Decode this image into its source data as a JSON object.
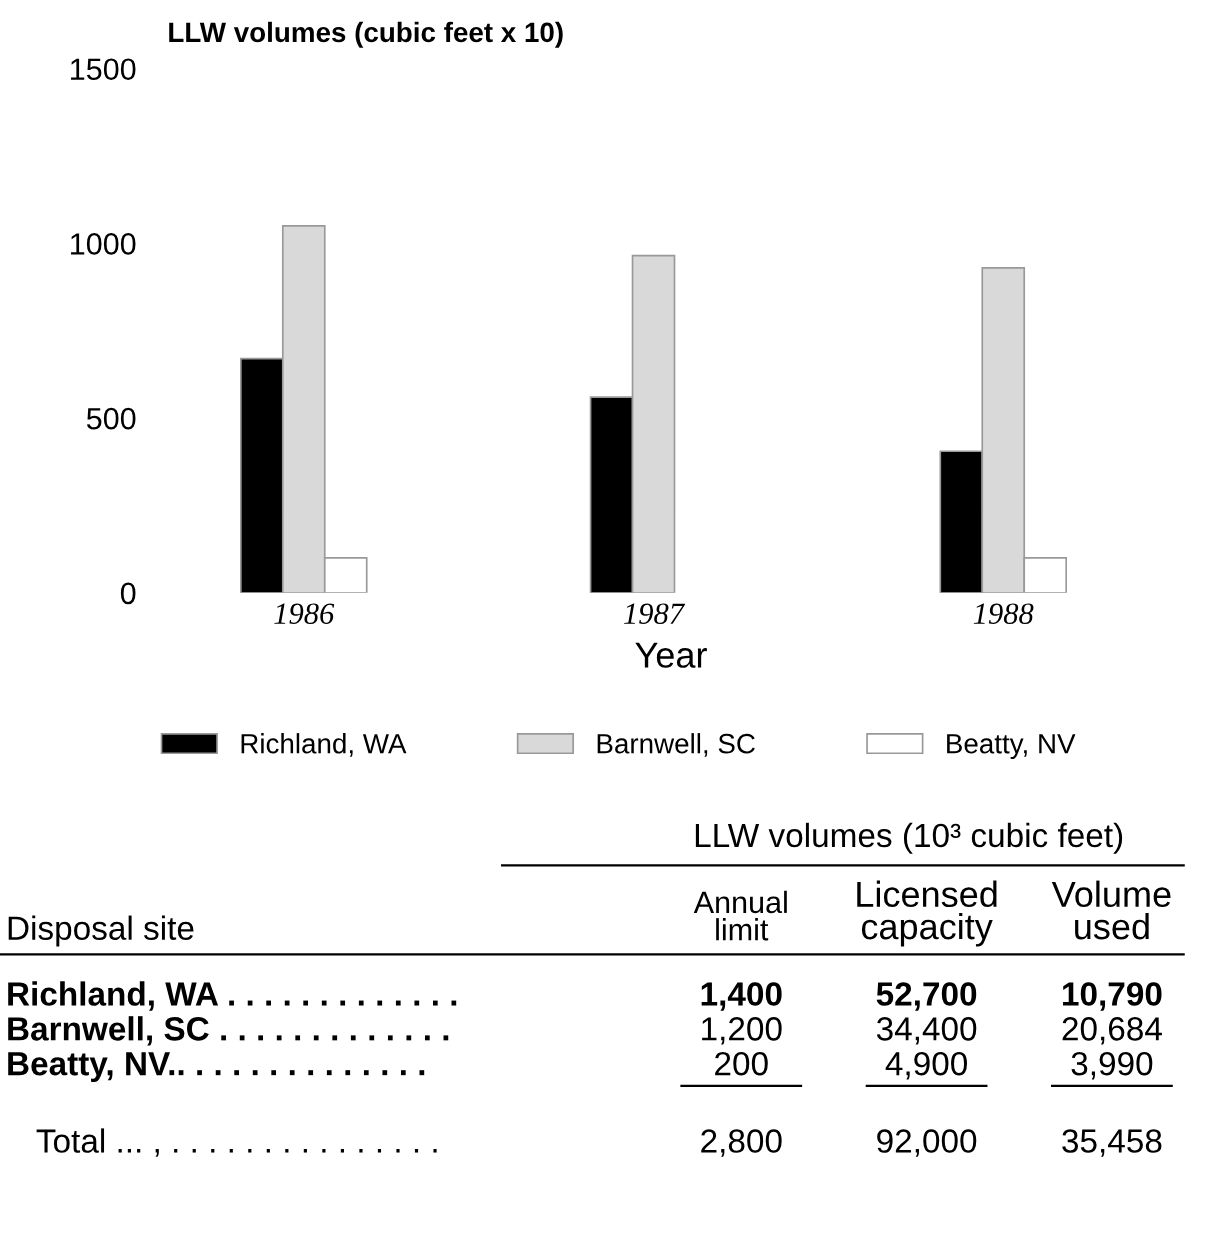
{
  "chart_data": [
    {
      "type": "bar",
      "title": "LLW volumes (cubic feet x 10)",
      "xlabel": "Year",
      "categories": [
        "1986",
        "1987",
        "1988"
      ],
      "series": [
        {
          "name": "Richland, WA",
          "color": "#000000",
          "values": [
            670,
            560,
            405
          ]
        },
        {
          "name": "Barnwell, SC",
          "color": "#d9d9d9",
          "values": [
            1050,
            965,
            930
          ]
        },
        {
          "name": "Beatty, NV",
          "color": "#ffffff",
          "values": [
            100,
            null,
            100
          ]
        }
      ],
      "ylim": [
        0,
        1500
      ],
      "yticks": [
        0,
        500,
        1000,
        1500
      ],
      "grid": false,
      "legend": "bottom"
    },
    {
      "type": "other",
      "annotations": [
        "LLW volumes (10³ cubic feet)",
        "Disposal site",
        "Annual limit",
        "Licensed capacity",
        "Volume used",
        "Richland, WA . . . . . . . . . . . . .",
        "1,400",
        "52,700",
        "10,790",
        "Barnwell, SC . . . . . . . . . . . . .",
        "1,200",
        "34,400",
        "20,684",
        "Beatty, NV.. . . . . . . . . . . . . .",
        "200",
        "4,900",
        "3,990",
        "Total ... , . . . . . . . . . . . . . . .",
        "2,800",
        "92,000",
        "35,458"
      ]
    }
  ]
}
